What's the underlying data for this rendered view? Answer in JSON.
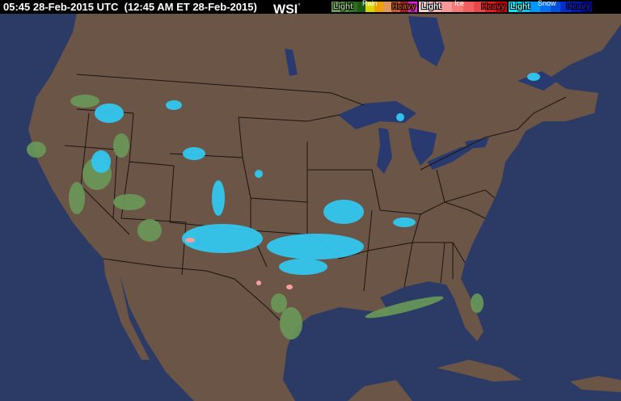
{
  "header": {
    "timestamp": "05:45 28-Feb-2015 UTC  (12:45 AM ET 28-Feb-2015)",
    "logo": "WSI",
    "logo_mark": "°"
  },
  "legend": {
    "rain": {
      "title": "Rain",
      "light": "Light",
      "heavy": "Heavy",
      "colors": [
        "#6a9a58",
        "#4d8a3a",
        "#2e6e22",
        "#1c5a16",
        "#d8d800",
        "#f0a000",
        "#e09858",
        "#c06030",
        "#a02020",
        "#e020e0"
      ]
    },
    "ice": {
      "title": "Ice",
      "light": "Light",
      "heavy": "Heavy",
      "colors": [
        "#f8d0d0",
        "#f8b0b0",
        "#f89898",
        "#f87878",
        "#f06060",
        "#e84848",
        "#e02020",
        "#c80000"
      ]
    },
    "snow": {
      "title": "Snow",
      "light": "Light",
      "heavy": "Heavy",
      "colors": [
        "#00e8f8",
        "#00c8f8",
        "#0098f8",
        "#0070f0",
        "#0050e0",
        "#0030c8",
        "#0018a8",
        "#000890"
      ]
    }
  },
  "map": {
    "ocean_color": "#2c3a66",
    "land_color": "#6b5546",
    "lake_color": "#283a70"
  }
}
